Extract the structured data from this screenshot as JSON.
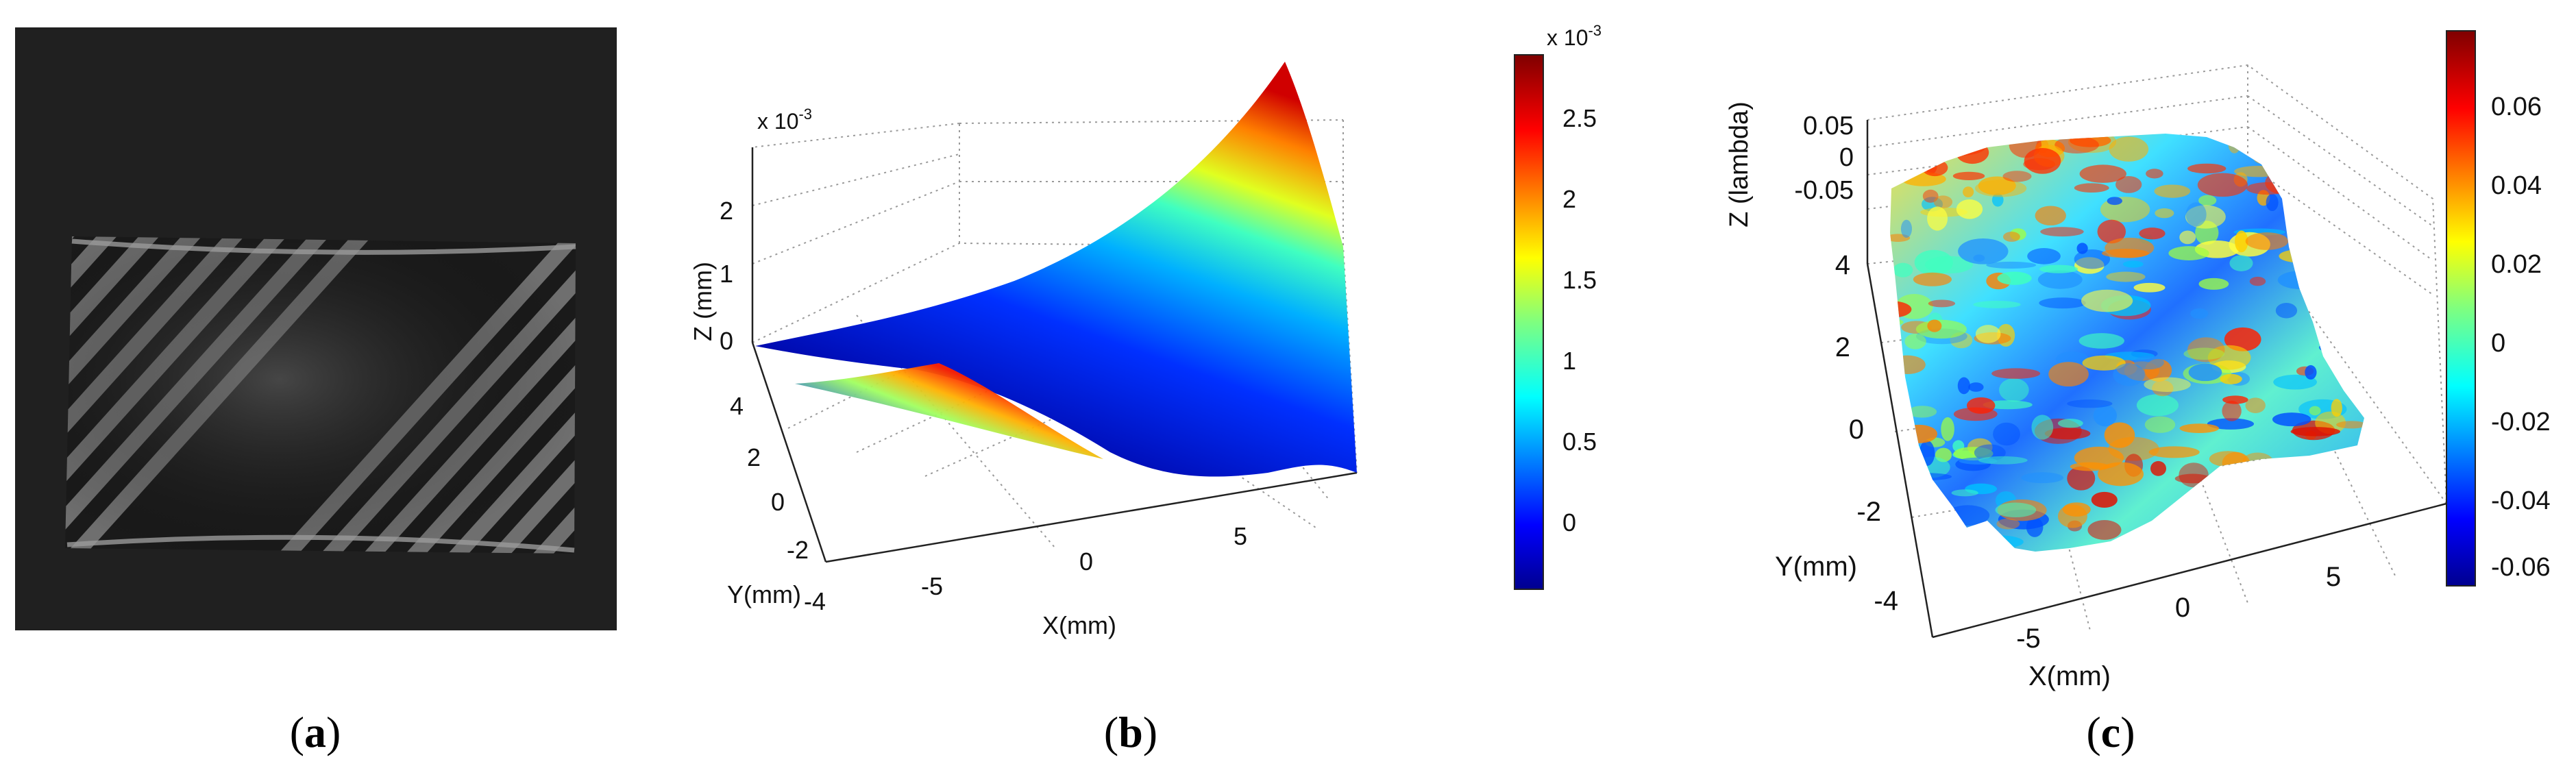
{
  "panels": {
    "a": {
      "caption_open": "(",
      "caption_letter": "a",
      "caption_close": ")"
    },
    "b": {
      "caption_open": "(",
      "caption_letter": "b",
      "caption_close": ")"
    },
    "c": {
      "caption_open": "(",
      "caption_letter": "c",
      "caption_close": ")"
    }
  },
  "chart_data": [
    {
      "id": "a",
      "type": "image",
      "description_visible": "interference fringe pattern",
      "colors": {
        "background": "#202020",
        "fringe_light": "#8c8c8c",
        "fringe_dark": "#1a1a1a"
      }
    },
    {
      "id": "b",
      "type": "surface",
      "zlabel": "Z (mm)",
      "ylabel": "Y(mm)",
      "xlabel": "X(mm)",
      "z_multiplier": "x 10",
      "z_exponent": "-3",
      "x_ticks": [
        "-5",
        "0",
        "5"
      ],
      "y_ticks": [
        "4",
        "2",
        "0",
        "-2",
        "-4"
      ],
      "z_ticks": [
        "2",
        "1",
        "0"
      ],
      "colorbar_ticks": [
        "2.5",
        "2",
        "1.5",
        "1",
        "0.5",
        "0"
      ],
      "colorbar_multiplier": "x 10",
      "colorbar_exponent": "-3",
      "z_range": [
        -0.0004,
        0.0029
      ],
      "x_range": [
        -7,
        7
      ],
      "y_range": [
        -4,
        4
      ],
      "grid": true,
      "colormap": "jet"
    },
    {
      "id": "c",
      "type": "surface",
      "zlabel": "Z (lambda)",
      "ylabel": "Y(mm)",
      "xlabel": "X(mm)",
      "x_ticks": [
        "-5",
        "0",
        "5"
      ],
      "y_ticks": [
        "4",
        "2",
        "0",
        "-2",
        "-4"
      ],
      "z_ticks": [
        "0.05",
        "0",
        "-0.05"
      ],
      "colorbar_ticks": [
        "0.06",
        "0.04",
        "0.02",
        "0",
        "-0.02",
        "-0.04",
        "-0.06"
      ],
      "z_range": [
        -0.07,
        0.07
      ],
      "x_range": [
        -7,
        7
      ],
      "y_range": [
        -4,
        4
      ],
      "grid": true,
      "colormap": "jet"
    }
  ]
}
